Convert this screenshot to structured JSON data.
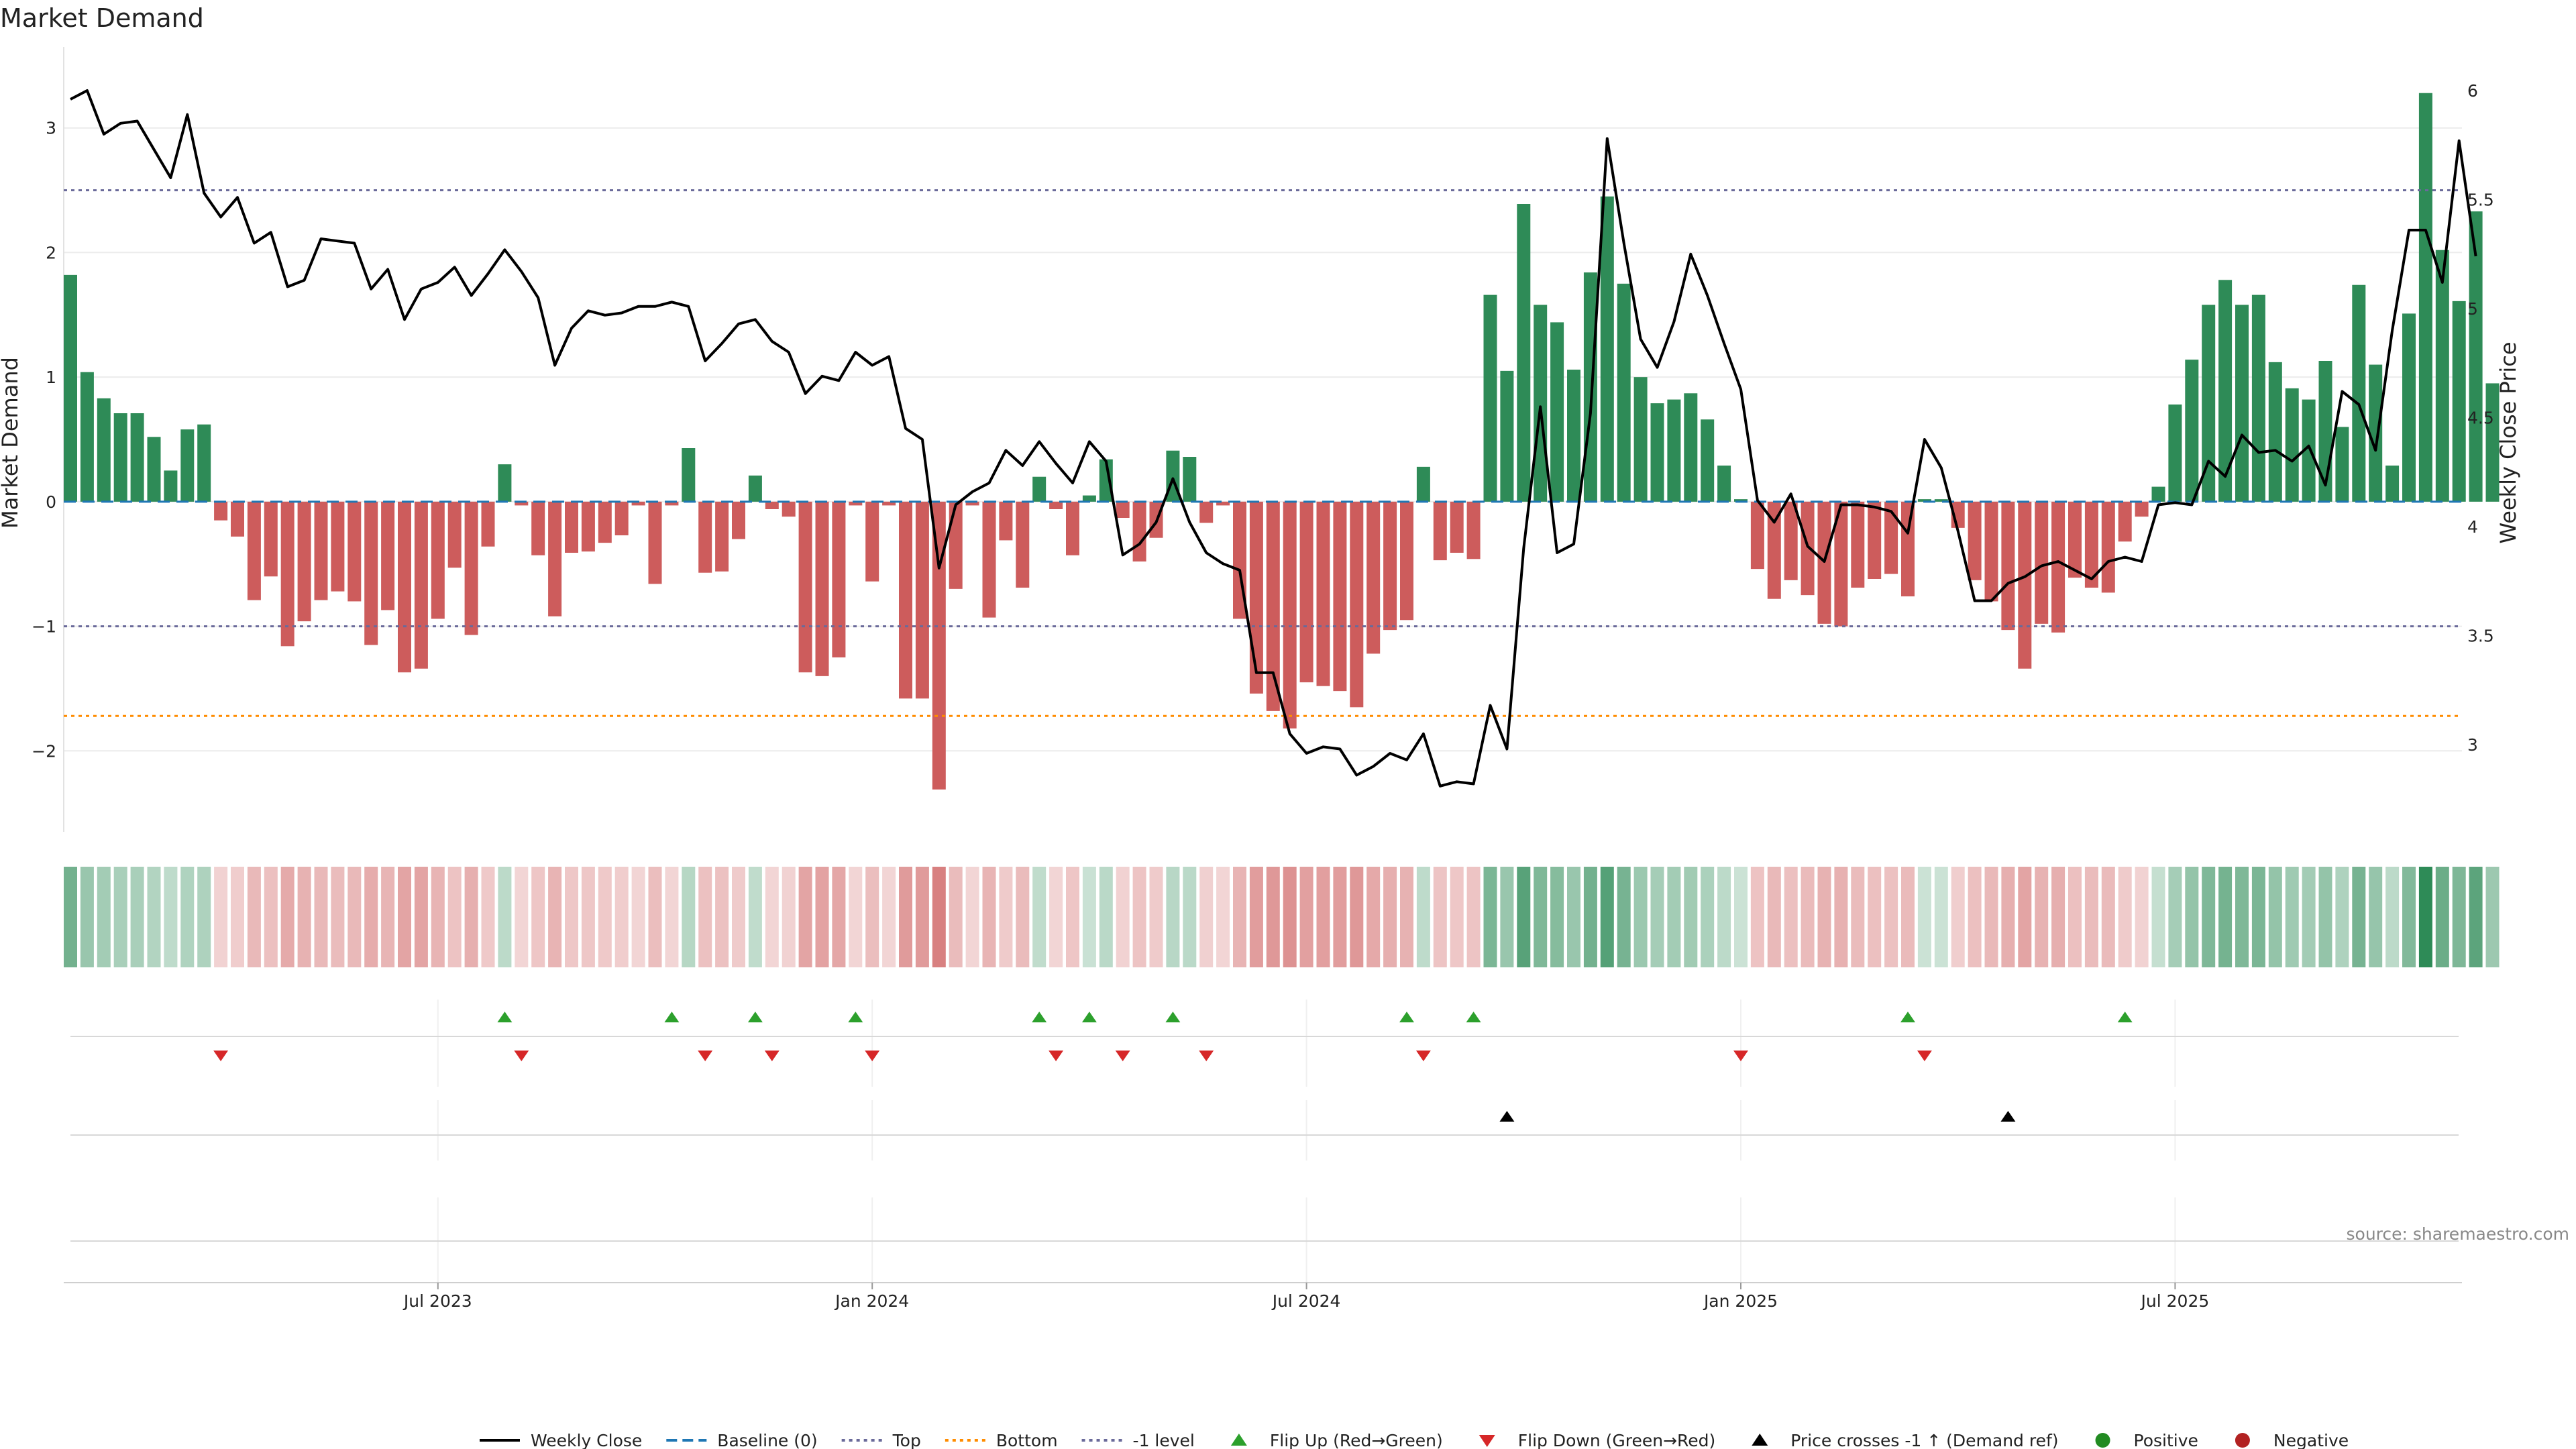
{
  "chart_data": {
    "type": "bar",
    "title": "Market Demand",
    "ylabel": "Market Demand",
    "y2label": "Weekly Close Price",
    "ylim": [
      -2.65,
      3.65
    ],
    "y2lim": [
      2.6,
      6.2
    ],
    "yticks": [
      {
        "v": -2,
        "t": "−2"
      },
      {
        "v": -1,
        "t": "−1"
      },
      {
        "v": 0,
        "t": "0"
      },
      {
        "v": 1,
        "t": "1"
      },
      {
        "v": 2,
        "t": "2"
      },
      {
        "v": 3,
        "t": "3"
      }
    ],
    "y2ticks": [
      {
        "v": 3,
        "t": "3"
      },
      {
        "v": 3.5,
        "t": "3.5"
      },
      {
        "v": 4,
        "t": "4"
      },
      {
        "v": 4.5,
        "t": "4.5"
      },
      {
        "v": 5,
        "t": "5"
      },
      {
        "v": 5.5,
        "t": "5.5"
      },
      {
        "v": 6,
        "t": "6"
      }
    ],
    "xticks": [
      {
        "i": 22,
        "t": "Jul 2023"
      },
      {
        "i": 48,
        "t": "Jan 2024"
      },
      {
        "i": 74,
        "t": "Jul 2024"
      },
      {
        "i": 100,
        "t": "Jan 2025"
      },
      {
        "i": 126,
        "t": "Jul 2025"
      }
    ],
    "levels": {
      "top": 2.5,
      "bottom": -1.72,
      "minus_one": -1,
      "baseline": 0
    },
    "demand": [
      1.82,
      1.04,
      0.83,
      0.71,
      0.71,
      0.52,
      0.25,
      0.58,
      0.62,
      -0.15,
      -0.28,
      -0.79,
      -0.6,
      -1.16,
      -0.96,
      -0.79,
      -0.72,
      -0.8,
      -1.15,
      -0.87,
      -1.37,
      -1.34,
      -0.94,
      -0.53,
      -1.07,
      -0.36,
      0.3,
      -0.03,
      -0.43,
      -0.92,
      -0.41,
      -0.4,
      -0.33,
      -0.27,
      -0.03,
      -0.66,
      -0.03,
      0.43,
      -0.57,
      -0.56,
      -0.3,
      0.21,
      -0.06,
      -0.12,
      -1.37,
      -1.4,
      -1.25,
      -0.03,
      -0.64,
      -0.03,
      -1.58,
      -1.58,
      -2.31,
      -0.7,
      -0.03,
      -0.93,
      -0.31,
      -0.69,
      0.2,
      -0.06,
      -0.43,
      0.05,
      0.34,
      -0.13,
      -0.48,
      -0.29,
      0.41,
      0.36,
      -0.17,
      -0.03,
      -0.94,
      -1.54,
      -1.68,
      -1.82,
      -1.45,
      -1.48,
      -1.52,
      -1.65,
      -1.22,
      -1.03,
      -0.95,
      0.28,
      -0.47,
      -0.41,
      -0.46,
      1.66,
      1.05,
      2.39,
      1.58,
      1.44,
      1.06,
      1.84,
      2.45,
      1.75,
      1.0,
      0.79,
      0.82,
      0.87,
      0.66,
      0.29,
      0.02,
      -0.54,
      -0.78,
      -0.63,
      -0.75,
      -0.98,
      -1.0,
      -0.69,
      -0.62,
      -0.58,
      -0.76,
      0.02,
      0.02,
      -0.21,
      -0.63,
      -0.8,
      -1.03,
      -1.34,
      -0.98,
      -1.05,
      -0.61,
      -0.69,
      -0.73,
      -0.32,
      -0.12,
      0.12,
      0.78,
      1.14,
      1.58,
      1.78,
      1.58,
      1.66,
      1.12,
      0.91,
      0.82,
      1.13,
      0.6,
      1.74,
      1.1,
      0.29,
      1.51,
      3.28,
      2.02,
      1.61,
      2.33,
      0.95
    ],
    "close": [
      5.96,
      6.0,
      5.8,
      5.85,
      5.86,
      5.73,
      5.6,
      5.89,
      5.53,
      5.42,
      5.51,
      5.3,
      5.35,
      5.1,
      5.13,
      5.32,
      5.31,
      5.3,
      5.09,
      5.18,
      4.95,
      5.09,
      5.12,
      5.19,
      5.06,
      5.16,
      5.27,
      5.17,
      5.05,
      4.74,
      4.91,
      4.99,
      4.97,
      4.98,
      5.01,
      5.01,
      5.03,
      5.01,
      4.76,
      4.84,
      4.93,
      4.95,
      4.85,
      4.8,
      4.61,
      4.69,
      4.67,
      4.8,
      4.74,
      4.78,
      4.45,
      4.4,
      3.81,
      4.1,
      4.16,
      4.2,
      4.35,
      4.28,
      4.39,
      4.29,
      4.2,
      4.39,
      4.3,
      3.87,
      3.92,
      4.02,
      4.22,
      4.02,
      3.88,
      3.83,
      3.8,
      3.33,
      3.33,
      3.05,
      2.96,
      2.99,
      2.98,
      2.86,
      2.9,
      2.96,
      2.93,
      3.05,
      2.81,
      2.83,
      2.82,
      3.18,
      2.98,
      3.9,
      4.55,
      3.88,
      3.92,
      4.52,
      5.78,
      5.3,
      4.86,
      4.73,
      4.94,
      5.25,
      5.06,
      4.84,
      4.63,
      4.12,
      4.02,
      4.15,
      3.91,
      3.84,
      4.1,
      4.1,
      4.09,
      4.07,
      3.97,
      4.4,
      4.27,
      3.98,
      3.66,
      3.66,
      3.74,
      3.77,
      3.82,
      3.84,
      3.8,
      3.76,
      3.84,
      3.86,
      3.84,
      4.1,
      4.11,
      4.1,
      4.3,
      4.23,
      4.42,
      4.34,
      4.35,
      4.3,
      4.37,
      4.19,
      4.62,
      4.56,
      4.35,
      4.9,
      5.36,
      5.36,
      5.12,
      5.77,
      5.24
    ],
    "flip_up": [
      26,
      36,
      41,
      47,
      58,
      61,
      66,
      80,
      84,
      110,
      123
    ],
    "flip_down": [
      9,
      27,
      38,
      42,
      48,
      59,
      63,
      68,
      81,
      100,
      111
    ],
    "price_cross": [
      86,
      116
    ],
    "colors": {
      "positive": "#2e8b57",
      "negative": "#cd5c5c",
      "close": "#000000",
      "baseline": "#1f77b4",
      "top": "#6a6a9a",
      "bottom": "#ff8c00",
      "minus_one": "#6a6a9a",
      "flip_up": "#2ca02c",
      "flip_down": "#d62728",
      "cross": "#000000",
      "dot_positive": "#228b22",
      "dot_negative": "#b22222"
    }
  },
  "source": "source: sharemaestro.com",
  "legend": [
    {
      "key": "close",
      "label": "Weekly Close"
    },
    {
      "key": "baseline",
      "label": "Baseline (0)"
    },
    {
      "key": "top",
      "label": "Top"
    },
    {
      "key": "bottom",
      "label": "Bottom"
    },
    {
      "key": "minus_one",
      "label": "-1 level"
    },
    {
      "key": "flip_up",
      "label": "Flip Up (Red→Green)"
    },
    {
      "key": "flip_down",
      "label": "Flip Down (Green→Red)"
    },
    {
      "key": "cross",
      "label": "Price crosses -1 ↑ (Demand ref)"
    },
    {
      "key": "pos",
      "label": "Positive"
    },
    {
      "key": "neg",
      "label": "Negative"
    }
  ]
}
